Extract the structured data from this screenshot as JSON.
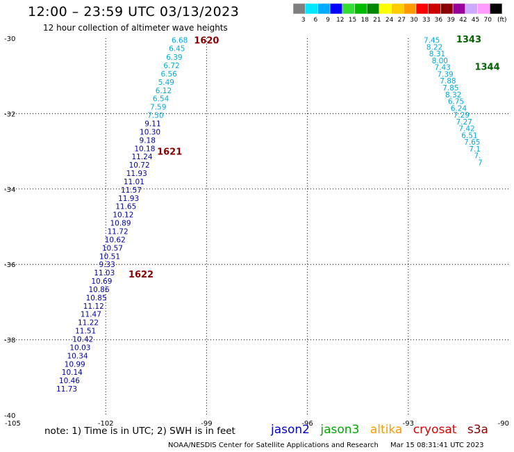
{
  "header": {
    "title": "12:00 – 23:59 UTC 03/13/2023",
    "subtitle": "12 hour collection of altimeter wave heights"
  },
  "legend": {
    "unit": "(ft)",
    "bins": [
      {
        "label": "3",
        "color": "#7f7f7f"
      },
      {
        "label": "6",
        "color": "#00e6ff"
      },
      {
        "label": "9",
        "color": "#00aaff"
      },
      {
        "label": "12",
        "color": "#0000ff"
      },
      {
        "label": "15",
        "color": "#33dd33"
      },
      {
        "label": "18",
        "color": "#00bb00"
      },
      {
        "label": "21",
        "color": "#008800"
      },
      {
        "label": "24",
        "color": "#ffff00"
      },
      {
        "label": "27",
        "color": "#ffcc00"
      },
      {
        "label": "30",
        "color": "#ff9900"
      },
      {
        "label": "33",
        "color": "#ff0000"
      },
      {
        "label": "36",
        "color": "#cc0000"
      },
      {
        "label": "39",
        "color": "#880000"
      },
      {
        "label": "42",
        "color": "#990099"
      },
      {
        "label": "45",
        "color": "#ccaaff"
      },
      {
        "label": "70",
        "color": "#ff99ff"
      },
      {
        "label": "",
        "color": "#000000"
      }
    ]
  },
  "axes": {
    "lat_ticks": [
      {
        "label": "-30",
        "value": -30
      },
      {
        "label": "-32",
        "value": -32
      },
      {
        "label": "-34",
        "value": -34
      },
      {
        "label": "-36",
        "value": -36
      },
      {
        "label": "-38",
        "value": -38
      },
      {
        "label": "-40",
        "value": -40
      }
    ],
    "lon_ticks": [
      {
        "label": "-105",
        "value": -105
      },
      {
        "label": "-102",
        "value": -102
      },
      {
        "label": "-99",
        "value": -99
      },
      {
        "label": "-96",
        "value": -96
      },
      {
        "label": "-93",
        "value": -93
      },
      {
        "label": "-90",
        "value": -90
      }
    ],
    "lon_range": [
      -105,
      -90
    ],
    "lat_range": [
      -30,
      -40
    ]
  },
  "tracks": [
    {
      "id": "west",
      "color": "#000099",
      "points": [
        {
          "lon": -99.8,
          "lat": -30.05,
          "v": "6.68",
          "color": "#00aadd"
        },
        {
          "lon": -99.88,
          "lat": -30.27,
          "v": "6.45",
          "color": "#00aadd"
        },
        {
          "lon": -99.96,
          "lat": -30.5,
          "v": "6.39",
          "color": "#00aadd"
        },
        {
          "lon": -100.04,
          "lat": -30.72,
          "v": "6.72",
          "color": "#00aadd"
        },
        {
          "lon": -100.12,
          "lat": -30.94,
          "v": "6.56",
          "color": "#00aadd"
        },
        {
          "lon": -100.2,
          "lat": -31.16,
          "v": "5.49",
          "color": "#00aadd"
        },
        {
          "lon": -100.28,
          "lat": -31.38,
          "v": "6.12",
          "color": "#00aadd"
        },
        {
          "lon": -100.36,
          "lat": -31.6,
          "v": "6.54",
          "color": "#00aadd"
        },
        {
          "lon": -100.44,
          "lat": -31.82,
          "v": "7.59",
          "color": "#00aadd"
        },
        {
          "lon": -100.52,
          "lat": -32.04,
          "v": "7.50",
          "color": "#00aadd"
        },
        {
          "lon": -100.6,
          "lat": -32.26,
          "v": "9.11",
          "color": "#0000aa"
        },
        {
          "lon": -100.68,
          "lat": -32.48,
          "v": "10.30",
          "color": "#0000aa"
        },
        {
          "lon": -100.76,
          "lat": -32.7,
          "v": "9.18",
          "color": "#0000aa"
        },
        {
          "lon": -100.84,
          "lat": -32.92,
          "v": "10.18",
          "color": "#0000aa"
        },
        {
          "lon": -100.92,
          "lat": -33.14,
          "v": "11.24",
          "color": "#0000aa"
        },
        {
          "lon": -101.0,
          "lat": -33.36,
          "v": "10.72",
          "color": "#0000aa"
        },
        {
          "lon": -101.08,
          "lat": -33.58,
          "v": "11.93",
          "color": "#0000aa"
        },
        {
          "lon": -101.16,
          "lat": -33.8,
          "v": "11.01",
          "color": "#0000aa"
        },
        {
          "lon": -101.24,
          "lat": -34.02,
          "v": "11.57",
          "color": "#0000aa"
        },
        {
          "lon": -101.32,
          "lat": -34.24,
          "v": "11.93",
          "color": "#0000aa"
        },
        {
          "lon": -101.4,
          "lat": -34.46,
          "v": "11.65",
          "color": "#0000aa"
        },
        {
          "lon": -101.48,
          "lat": -34.68,
          "v": "10.12",
          "color": "#0000aa"
        },
        {
          "lon": -101.56,
          "lat": -34.9,
          "v": "10.89",
          "color": "#0000aa"
        },
        {
          "lon": -101.64,
          "lat": -35.12,
          "v": "11.72",
          "color": "#0000aa"
        },
        {
          "lon": -101.72,
          "lat": -35.34,
          "v": "10.62",
          "color": "#0000aa"
        },
        {
          "lon": -101.8,
          "lat": -35.56,
          "v": "10.57",
          "color": "#0000aa"
        },
        {
          "lon": -101.88,
          "lat": -35.78,
          "v": "10.51",
          "color": "#0000aa"
        },
        {
          "lon": -101.96,
          "lat": -36.0,
          "v": "9.33",
          "color": "#0000aa"
        },
        {
          "lon": -102.04,
          "lat": -36.22,
          "v": "11.03",
          "color": "#0000aa"
        },
        {
          "lon": -102.12,
          "lat": -36.44,
          "v": "10.69",
          "color": "#0000aa"
        },
        {
          "lon": -102.2,
          "lat": -36.66,
          "v": "10.86",
          "color": "#0000aa"
        },
        {
          "lon": -102.28,
          "lat": -36.88,
          "v": "10.85",
          "color": "#0000aa"
        },
        {
          "lon": -102.36,
          "lat": -37.1,
          "v": "11.12",
          "color": "#0000aa"
        },
        {
          "lon": -102.44,
          "lat": -37.32,
          "v": "11.47",
          "color": "#0000aa"
        },
        {
          "lon": -102.52,
          "lat": -37.54,
          "v": "11.22",
          "color": "#0000aa"
        },
        {
          "lon": -102.6,
          "lat": -37.76,
          "v": "11.51",
          "color": "#0000aa"
        },
        {
          "lon": -102.68,
          "lat": -37.98,
          "v": "10.42",
          "color": "#0000aa"
        },
        {
          "lon": -102.76,
          "lat": -38.2,
          "v": "10.03",
          "color": "#0000aa"
        },
        {
          "lon": -102.84,
          "lat": -38.42,
          "v": "10.34",
          "color": "#0000aa"
        },
        {
          "lon": -102.92,
          "lat": -38.64,
          "v": "10.99",
          "color": "#0000aa"
        },
        {
          "lon": -103.0,
          "lat": -38.86,
          "v": "10.14",
          "color": "#0000aa"
        },
        {
          "lon": -103.08,
          "lat": -39.08,
          "v": "10.46",
          "color": "#0000aa"
        },
        {
          "lon": -103.16,
          "lat": -39.3,
          "v": "11.73",
          "color": "#0000aa"
        }
      ],
      "times": [
        {
          "lon": -99.0,
          "lat": -30.05,
          "label": "1620",
          "color": "#880000"
        },
        {
          "lon": -100.1,
          "lat": -33.0,
          "label": "1621",
          "color": "#880000"
        },
        {
          "lon": -100.95,
          "lat": -36.25,
          "label": "1622",
          "color": "#880000"
        }
      ]
    },
    {
      "id": "east",
      "color": "#00aadd",
      "points": [
        {
          "lon": -92.3,
          "lat": -30.05,
          "v": "7.45",
          "color": "#00aadd"
        },
        {
          "lon": -92.22,
          "lat": -30.23,
          "v": "8.22",
          "color": "#00aadd"
        },
        {
          "lon": -92.14,
          "lat": -30.41,
          "v": "8.31",
          "color": "#00aadd"
        },
        {
          "lon": -92.06,
          "lat": -30.59,
          "v": "8.00",
          "color": "#00aadd"
        },
        {
          "lon": -91.98,
          "lat": -30.77,
          "v": "7.43",
          "color": "#00aadd"
        },
        {
          "lon": -91.9,
          "lat": -30.95,
          "v": "7.39",
          "color": "#00aadd"
        },
        {
          "lon": -91.82,
          "lat": -31.13,
          "v": "7.88",
          "color": "#00aadd"
        },
        {
          "lon": -91.74,
          "lat": -31.31,
          "v": "7.85",
          "color": "#00aadd"
        },
        {
          "lon": -91.66,
          "lat": -31.49,
          "v": "8.32",
          "color": "#00aadd"
        },
        {
          "lon": -91.58,
          "lat": -31.67,
          "v": "6.75",
          "color": "#00aadd"
        },
        {
          "lon": -91.5,
          "lat": -31.85,
          "v": "6.24",
          "color": "#00aadd"
        },
        {
          "lon": -91.42,
          "lat": -32.03,
          "v": "7.29",
          "color": "#00aadd"
        },
        {
          "lon": -91.34,
          "lat": -32.21,
          "v": "7.27",
          "color": "#00aadd"
        },
        {
          "lon": -91.26,
          "lat": -32.39,
          "v": "7.42",
          "color": "#00aadd"
        },
        {
          "lon": -91.18,
          "lat": -32.57,
          "v": "6.51",
          "color": "#00aadd"
        },
        {
          "lon": -91.1,
          "lat": -32.75,
          "v": "7.65",
          "color": "#00aadd"
        },
        {
          "lon": -91.02,
          "lat": -32.93,
          "v": "7.1",
          "color": "#00aadd"
        },
        {
          "lon": -90.94,
          "lat": -33.11,
          "v": "7.",
          "color": "#00aadd"
        },
        {
          "lon": -90.86,
          "lat": -33.29,
          "v": "7",
          "color": "#00aadd"
        }
      ],
      "times": [
        {
          "lon": -91.2,
          "lat": -30.02,
          "label": "1343",
          "color": "#006600"
        },
        {
          "lon": -90.65,
          "lat": -30.75,
          "label": "1344",
          "color": "#006600"
        }
      ]
    }
  ],
  "footer": {
    "note": "note:  1) Time is in UTC;  2) SWH is in feet",
    "satellites": [
      {
        "name": "jason2",
        "color": "#0000cc"
      },
      {
        "name": "jason3",
        "color": "#00aa00"
      },
      {
        "name": "altika",
        "color": "#ff9900"
      },
      {
        "name": "cryosat",
        "color": "#dd0000"
      },
      {
        "name": "s3a",
        "color": "#880000"
      }
    ],
    "credit": "NOAA/NESDIS Center for Satellite Applications and Research",
    "timestamp": "Mar 15 08:31:41 UTC 2023"
  }
}
